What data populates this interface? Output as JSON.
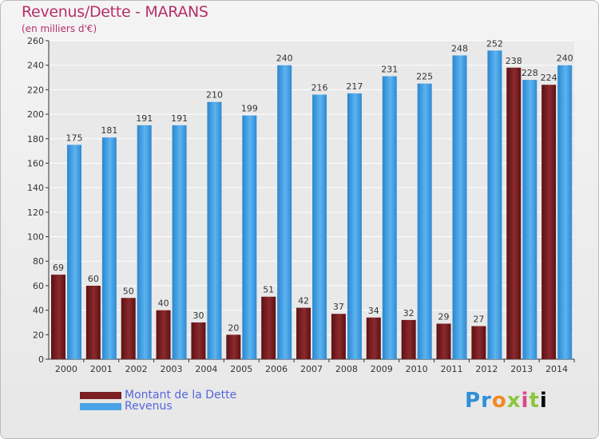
{
  "header": {
    "title": "Revenus/Dette - MARANS",
    "subtitle": "(en milliers d'€)"
  },
  "legend": {
    "debt_label": "Montant de la Dette",
    "revenue_label": "Revenus"
  },
  "brand": {
    "logo_text": "Proxiti"
  },
  "colors": {
    "debt": "#7a1f22",
    "revenue": "#4aa3e6",
    "grid": "#ffffff",
    "axis": "#333333"
  },
  "chart_data": {
    "type": "bar",
    "title": "Revenus/Dette - MARANS",
    "subtitle": "(en milliers d'€)",
    "categories": [
      "2000",
      "2001",
      "2002",
      "2003",
      "2004",
      "2005",
      "2006",
      "2007",
      "2008",
      "2009",
      "2010",
      "2011",
      "2012",
      "2013",
      "2014"
    ],
    "series": [
      {
        "name": "Montant de la Dette",
        "values": [
          69,
          60,
          50,
          40,
          30,
          20,
          51,
          42,
          37,
          34,
          32,
          29,
          27,
          238,
          224
        ]
      },
      {
        "name": "Revenus",
        "values": [
          175,
          181,
          191,
          191,
          210,
          199,
          240,
          216,
          217,
          231,
          225,
          248,
          252,
          228,
          240
        ]
      }
    ],
    "ylim": [
      0,
      260
    ],
    "yticks": [
      0,
      20,
      40,
      60,
      80,
      100,
      120,
      140,
      160,
      180,
      200,
      220,
      240,
      260
    ],
    "grid": true,
    "legend_position": "bottom-left"
  }
}
